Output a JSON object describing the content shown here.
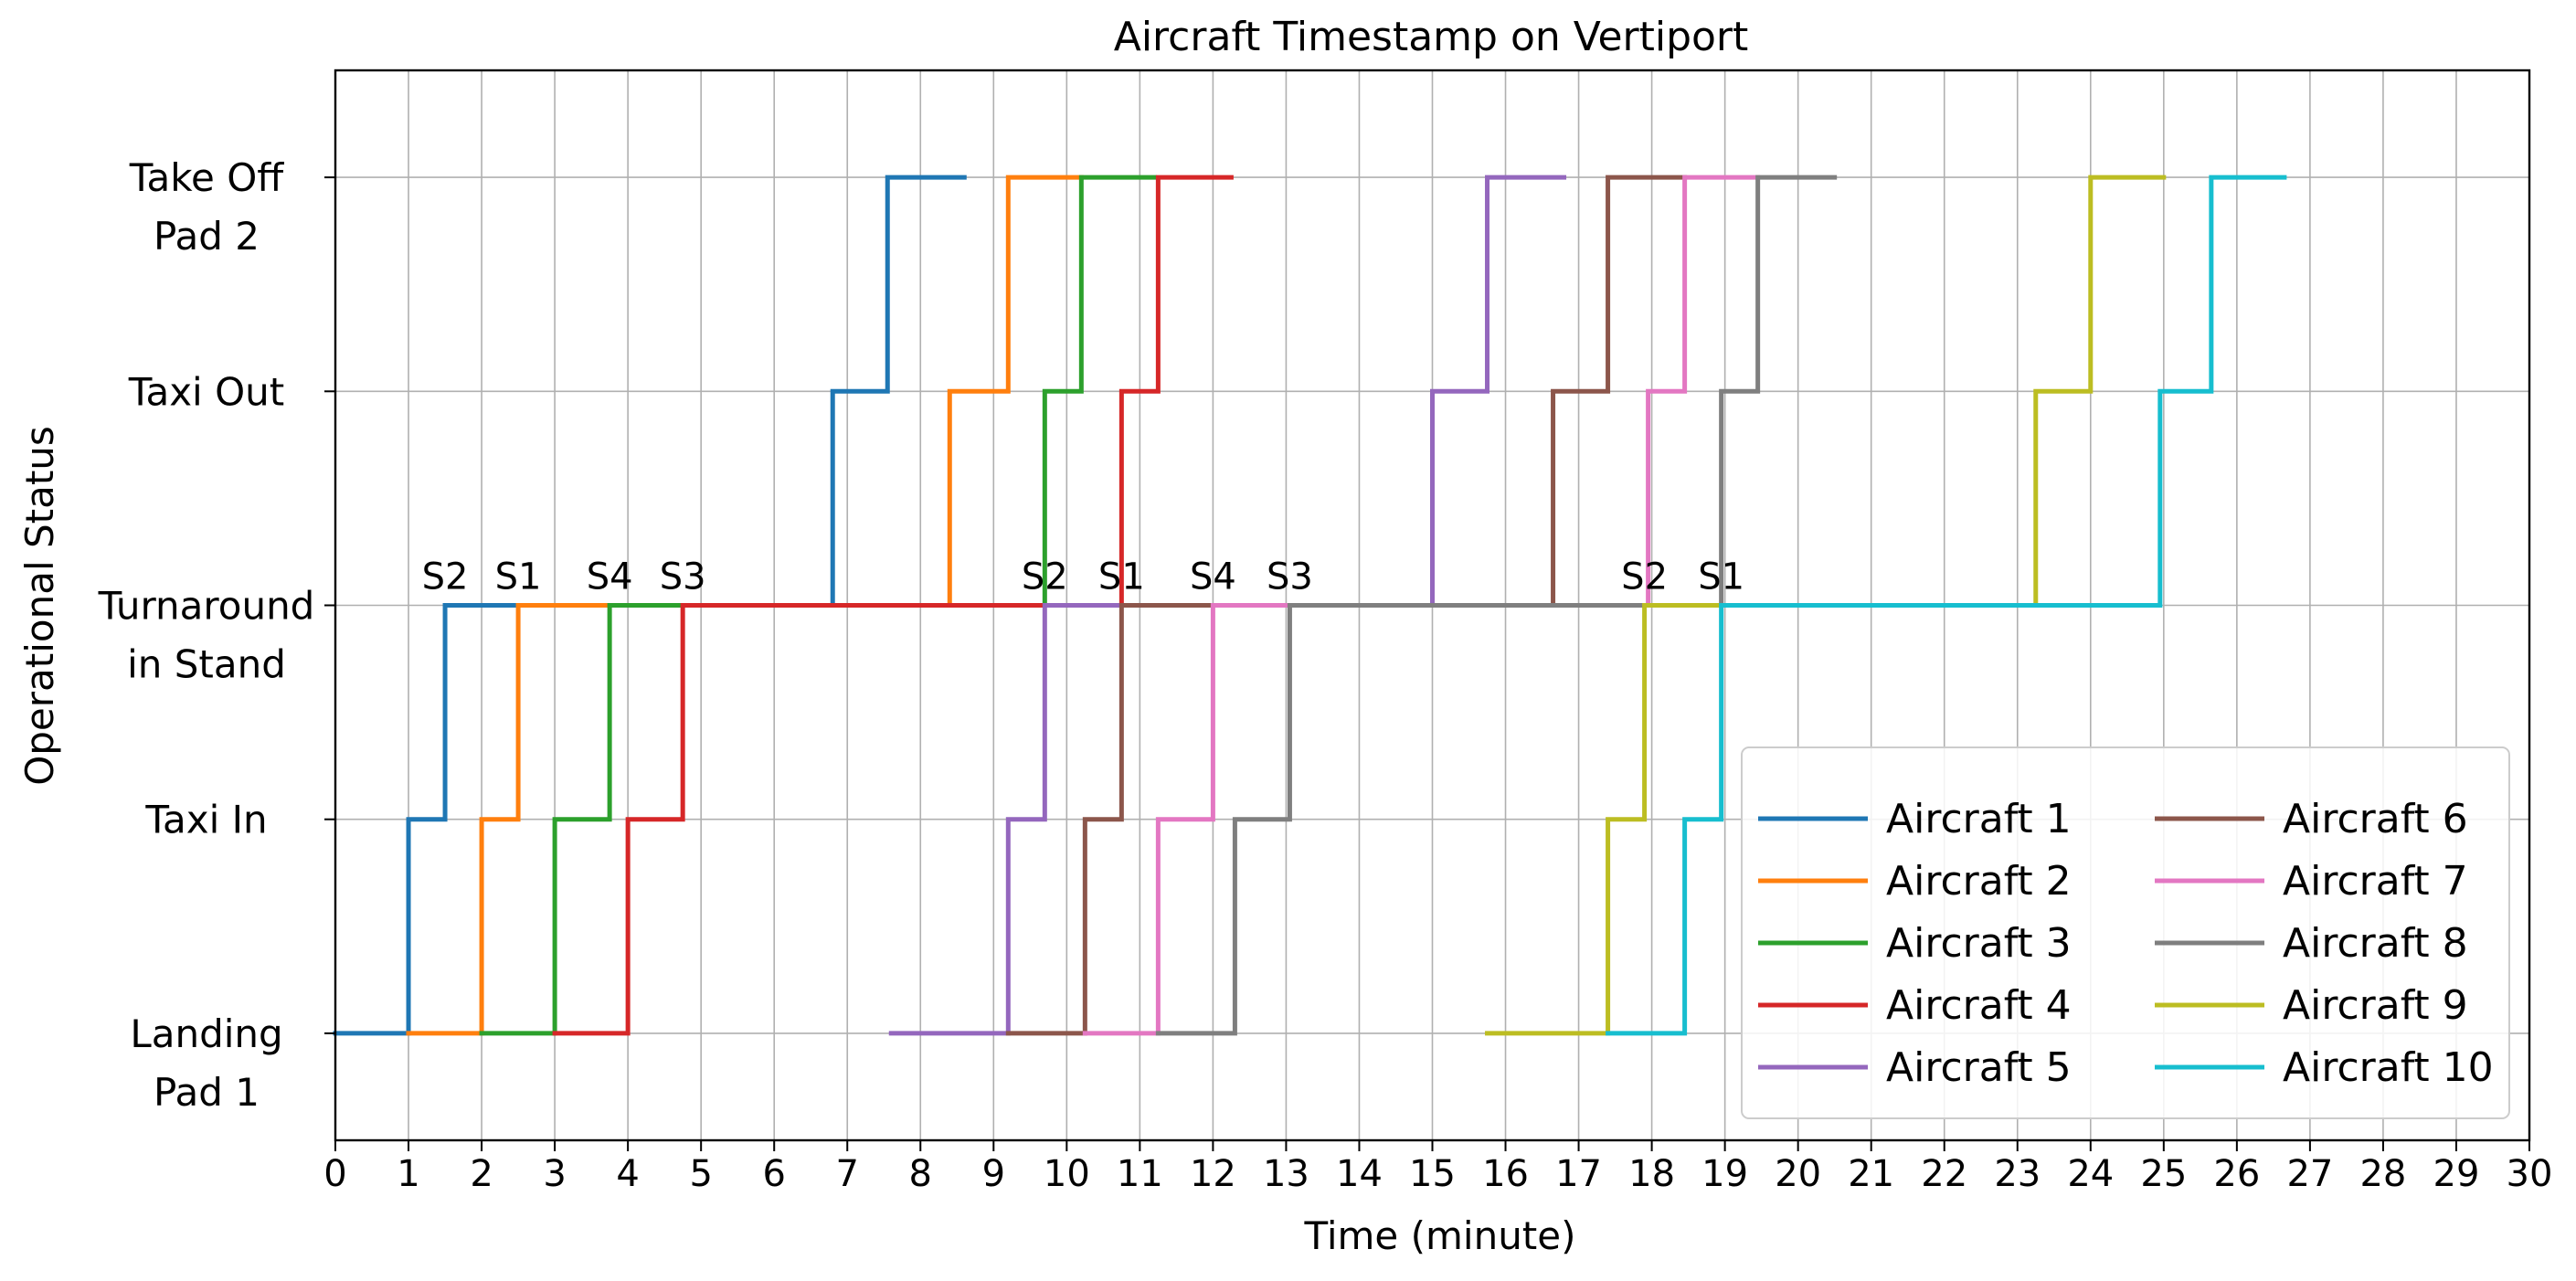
{
  "chart_data": {
    "type": "line",
    "title": "Aircraft Timestamp on Vertiport",
    "xlabel": "Time (minute)",
    "ylabel": "Operational Status",
    "xlim": [
      0,
      30
    ],
    "ylim": [
      -0.5,
      4.5
    ],
    "grid": true,
    "legend_position": "lower-right",
    "legend_columns": 2,
    "y_categories": [
      {
        "level": 0,
        "lines": [
          "Landing",
          "Pad 1"
        ]
      },
      {
        "level": 1,
        "lines": [
          "Taxi In"
        ]
      },
      {
        "level": 2,
        "lines": [
          "Turnaround",
          "in Stand"
        ]
      },
      {
        "level": 3,
        "lines": [
          "Taxi Out"
        ]
      },
      {
        "level": 4,
        "lines": [
          "Take Off",
          "Pad 2"
        ]
      }
    ],
    "x_ticks": [
      "0",
      "1",
      "2",
      "3",
      "4",
      "5",
      "6",
      "7",
      "8",
      "9",
      "10",
      "11",
      "12",
      "13",
      "14",
      "15",
      "16",
      "17",
      "18",
      "19",
      "20",
      "21",
      "22",
      "23",
      "24",
      "25",
      "26",
      "27",
      "28",
      "29",
      "30"
    ],
    "series": [
      {
        "name": "Aircraft 1",
        "color": "#1f77b4",
        "x": [
          0,
          1,
          1.5,
          6.8,
          7.55,
          8.6
        ],
        "y": [
          0,
          1,
          2,
          3,
          4,
          4
        ]
      },
      {
        "name": "Aircraft 2",
        "color": "#ff7f0e",
        "x": [
          1,
          2,
          2.5,
          8.4,
          9.2,
          10.2
        ],
        "y": [
          0,
          1,
          2,
          3,
          4,
          4
        ]
      },
      {
        "name": "Aircraft 3",
        "color": "#2ca02c",
        "x": [
          2,
          3,
          3.75,
          9.7,
          10.2,
          11.2
        ],
        "y": [
          0,
          1,
          2,
          3,
          4,
          4
        ]
      },
      {
        "name": "Aircraft 4",
        "color": "#d62728",
        "x": [
          3,
          4,
          4.75,
          10.75,
          11.25,
          12.25
        ],
        "y": [
          0,
          1,
          2,
          3,
          4,
          4
        ]
      },
      {
        "name": "Aircraft 5",
        "color": "#9467bd",
        "x": [
          7.6,
          9.2,
          9.7,
          15,
          15.75,
          16.8
        ],
        "y": [
          0,
          1,
          2,
          3,
          4,
          4
        ]
      },
      {
        "name": "Aircraft 6",
        "color": "#8c564b",
        "x": [
          9.2,
          10.25,
          10.75,
          16.65,
          17.4,
          18.45
        ],
        "y": [
          0,
          1,
          2,
          3,
          4,
          4
        ]
      },
      {
        "name": "Aircraft 7",
        "color": "#e377c2",
        "x": [
          10.25,
          11.25,
          12,
          17.95,
          18.45,
          19.45
        ],
        "y": [
          0,
          1,
          2,
          3,
          4,
          4
        ]
      },
      {
        "name": "Aircraft 8",
        "color": "#7f7f7f",
        "x": [
          11.25,
          12.3,
          13.05,
          18.95,
          19.45,
          20.5
        ],
        "y": [
          0,
          1,
          2,
          3,
          4,
          4
        ]
      },
      {
        "name": "Aircraft 9",
        "color": "#bcbd22",
        "x": [
          15.75,
          17.4,
          17.9,
          23.25,
          24,
          25
        ],
        "y": [
          0,
          1,
          2,
          3,
          4,
          4
        ]
      },
      {
        "name": "Aircraft 10",
        "color": "#17becf",
        "x": [
          17.4,
          18.45,
          18.95,
          24.95,
          25.65,
          26.65
        ],
        "y": [
          0,
          1,
          2,
          3,
          4,
          4
        ]
      }
    ],
    "annotations": [
      {
        "text": "S2",
        "x": 1.5,
        "y": 2
      },
      {
        "text": "S1",
        "x": 2.5,
        "y": 2
      },
      {
        "text": "S4",
        "x": 3.75,
        "y": 2
      },
      {
        "text": "S3",
        "x": 4.75,
        "y": 2
      },
      {
        "text": "S2",
        "x": 9.7,
        "y": 2
      },
      {
        "text": "S1",
        "x": 10.75,
        "y": 2
      },
      {
        "text": "S4",
        "x": 12,
        "y": 2
      },
      {
        "text": "S3",
        "x": 13.05,
        "y": 2
      },
      {
        "text": "S2",
        "x": 17.9,
        "y": 2
      },
      {
        "text": "S1",
        "x": 18.95,
        "y": 2
      }
    ]
  }
}
